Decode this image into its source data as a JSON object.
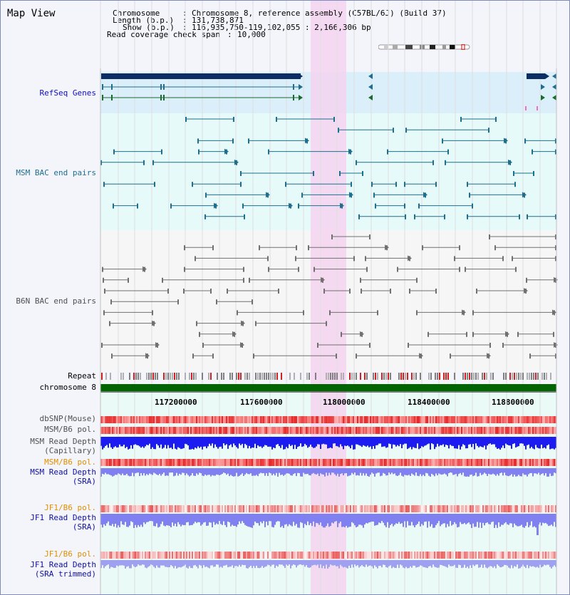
{
  "panel": {
    "title": "Map View"
  },
  "header": {
    "chromosome_label": "Chromosome",
    "chromosome_value": "Chromosome 8, reference assembly (C57BL/6J) (Build 37)",
    "length_label": "Length (b.p.)",
    "length_value": "131,738,871",
    "show_label": "Show (b.p.)",
    "show_value": "116,935,750-119,102,055 : 2,166,306 bp",
    "span_label": "Read coverage check span",
    "span_value": "10,000"
  },
  "tracks": {
    "refseq": "RefSeq Genes",
    "msm_bac": "MSM BAC end pairs",
    "b6n_bac": "B6N BAC end pairs",
    "repeat": "Repeat",
    "chromosome": "chromosome 8",
    "dbsnp": "dbSNP(Mouse)",
    "msm_b6_pol_1": "MSM/B6 pol.",
    "msm_depth_cap_1": "MSM Read Depth",
    "msm_depth_cap_2": "(Capillary)",
    "msm_b6_pol_2": "MSM/B6 pol.",
    "msm_depth_sra_1": "MSM Read Depth",
    "msm_depth_sra_2": "(SRA)",
    "jf1_b6_pol_1": "JF1/B6 pol.",
    "jf1_depth_sra_1": "JF1 Read Depth",
    "jf1_depth_sra_2": "(SRA)",
    "jf1_b6_pol_2": "JF1/B6 pol.",
    "jf1_depth_trim_1": "JF1 Read Depth",
    "jf1_depth_trim_2": "(SRA trimmed)"
  },
  "axis": {
    "ticks": [
      "117200000",
      "117600000",
      "118000000",
      "118400000",
      "118800000"
    ]
  },
  "colors": {
    "highlight": "#f5d4f0",
    "refseq_bg": "#dbeffa",
    "msm_bg": "#e6fafa",
    "b6n_bg": "#f2f2f2",
    "gene": "#0b2f64",
    "msm_bac": "#1f6e8e",
    "b6n_bac": "#707070",
    "chromosome": "#006400",
    "pol": "#ee3a3a",
    "depth_cap": "#1c1cf0",
    "depth_sra": "#8080f0"
  }
}
